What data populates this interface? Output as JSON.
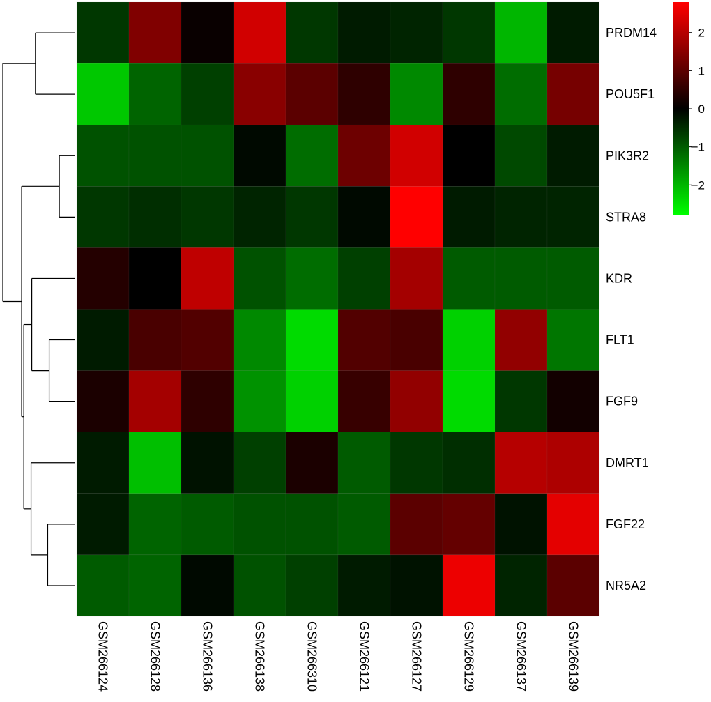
{
  "chart_data": {
    "type": "heatmap",
    "rows": [
      "PRDM14",
      "POU5F1",
      "PIK3R2",
      "STRA8",
      "KDR",
      "FLT1",
      "FGF9",
      "DMRT1",
      "FGF22",
      "NR5A2"
    ],
    "columns": [
      "GSM266124",
      "GSM266128",
      "GSM266136",
      "GSM266138",
      "GSM266310",
      "GSM266121",
      "GSM266127",
      "GSM266129",
      "GSM266137",
      "GSM266139"
    ],
    "values": [
      [
        -0.6,
        1.4,
        0.1,
        2.3,
        -0.6,
        -0.3,
        -0.4,
        -0.6,
        -2.0,
        -0.3
      ],
      [
        -2.2,
        -1.1,
        -0.7,
        1.5,
        1.0,
        0.5,
        -1.5,
        0.5,
        -1.2,
        1.3
      ],
      [
        -0.9,
        -0.9,
        -0.9,
        -0.1,
        -1.2,
        1.2,
        2.3,
        0.0,
        -0.8,
        -0.3
      ],
      [
        -0.6,
        -0.5,
        -0.6,
        -0.4,
        -0.6,
        -0.1,
        2.8,
        -0.3,
        -0.4,
        -0.4
      ],
      [
        0.4,
        0.0,
        2.1,
        -0.9,
        -1.2,
        -0.7,
        1.8,
        -1.0,
        -1.0,
        -1.0
      ],
      [
        -0.3,
        0.8,
        0.9,
        -1.5,
        -2.4,
        0.9,
        0.8,
        -2.3,
        1.6,
        -1.3
      ],
      [
        0.3,
        1.8,
        0.5,
        -1.6,
        -2.3,
        0.6,
        1.6,
        -2.4,
        -0.6,
        0.2
      ],
      [
        -0.3,
        -2.1,
        -0.2,
        -0.7,
        0.3,
        -1.0,
        -0.6,
        -0.5,
        2.0,
        1.9
      ],
      [
        -0.3,
        -1.1,
        -1.0,
        -0.9,
        -0.9,
        -1.0,
        1.0,
        1.1,
        -0.2,
        2.5
      ],
      [
        -1.0,
        -1.1,
        -0.1,
        -0.9,
        -0.7,
        -0.3,
        -0.2,
        2.6,
        -0.4,
        1.0
      ]
    ],
    "color_scale": {
      "low": "#00FF00",
      "mid": "#000000",
      "high": "#FF0000",
      "min": -2.8,
      "max": 2.8
    },
    "legend": {
      "ticks": [
        2,
        1,
        0,
        -1,
        -2
      ],
      "tick_labels": [
        "2",
        "1",
        "0",
        "−1",
        "−2"
      ],
      "position": "top-right"
    },
    "row_dendrogram": {
      "merges": [
        [
          0,
          1
        ],
        [
          2,
          3
        ],
        [
          5,
          6
        ],
        [
          4,
          "c2"
        ],
        [
          8,
          9
        ],
        [
          7,
          "c4"
        ],
        [
          "c3",
          "c5"
        ],
        [
          "c1",
          "c6"
        ],
        [
          "c0",
          "c7"
        ]
      ]
    }
  }
}
